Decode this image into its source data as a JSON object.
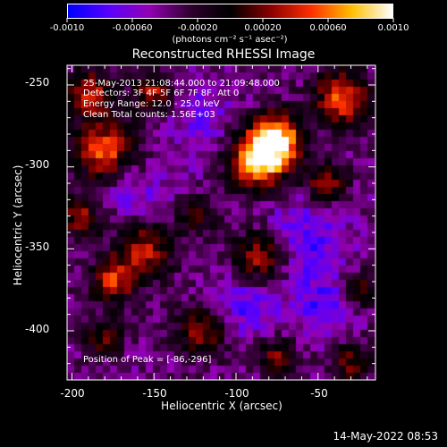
{
  "colorbar": {
    "ticks": [
      "-0.0010",
      "-0.00060",
      "-0.00020",
      "0.00020",
      "0.00060",
      "0.0010"
    ],
    "tick_values": [
      -0.001,
      -0.0006,
      -0.0002,
      0.0002,
      0.0006,
      0.001
    ],
    "range": [
      -0.001,
      0.001
    ],
    "unit": "(photons cm⁻² s⁻¹ asec⁻²)"
  },
  "chart_data": {
    "type": "heatmap",
    "title": "Reconstructed RHESSI Image",
    "xlabel": "Heliocentric X (arcsec)",
    "ylabel": "Heliocentric Y (arcsec)",
    "xlim": [
      -203,
      -15
    ],
    "ylim": [
      -430,
      -238
    ],
    "x_ticks": [
      -200,
      -150,
      -100,
      -50
    ],
    "y_ticks": [
      -250,
      -300,
      -350,
      -400
    ],
    "colormap_stops": [
      "#0000ff",
      "#5a00ff",
      "#9400b3",
      "#300030",
      "#000000",
      "#8a0000",
      "#ff3000",
      "#ffc000",
      "#ffffff"
    ],
    "hot_spots": [
      {
        "x": -86,
        "y": -296,
        "intensity": 1.0,
        "spread": 13
      },
      {
        "x": -75,
        "y": -282,
        "intensity": 0.85,
        "spread": 11
      },
      {
        "x": -180,
        "y": -290,
        "intensity": 0.75,
        "spread": 13
      },
      {
        "x": -190,
        "y": -255,
        "intensity": 0.65,
        "spread": 10
      },
      {
        "x": -150,
        "y": -255,
        "intensity": 0.55,
        "spread": 9
      },
      {
        "x": -35,
        "y": -258,
        "intensity": 0.75,
        "spread": 12
      },
      {
        "x": -155,
        "y": -350,
        "intensity": 0.6,
        "spread": 13
      },
      {
        "x": -125,
        "y": -330,
        "intensity": 0.6,
        "spread": 11
      },
      {
        "x": -85,
        "y": -355,
        "intensity": 0.65,
        "spread": 12
      },
      {
        "x": -45,
        "y": -310,
        "intensity": 0.55,
        "spread": 9
      },
      {
        "x": -195,
        "y": -330,
        "intensity": 0.55,
        "spread": 9
      },
      {
        "x": -175,
        "y": -370,
        "intensity": 0.6,
        "spread": 10
      },
      {
        "x": -120,
        "y": -400,
        "intensity": 0.55,
        "spread": 11
      },
      {
        "x": -180,
        "y": -405,
        "intensity": 0.5,
        "spread": 8
      },
      {
        "x": -75,
        "y": -415,
        "intensity": 0.5,
        "spread": 8
      },
      {
        "x": -30,
        "y": -420,
        "intensity": 0.45,
        "spread": 9
      },
      {
        "x": -25,
        "y": -375,
        "intensity": 0.45,
        "spread": 8
      }
    ],
    "cold_spots": [
      {
        "x": -130,
        "y": -330,
        "intensity": 0.8,
        "spread": 15
      },
      {
        "x": -60,
        "y": -345,
        "intensity": 0.9,
        "spread": 18
      },
      {
        "x": -45,
        "y": -385,
        "intensity": 0.9,
        "spread": 12
      },
      {
        "x": -95,
        "y": -385,
        "intensity": 0.85,
        "spread": 14
      },
      {
        "x": -165,
        "y": -315,
        "intensity": 0.6,
        "spread": 13
      },
      {
        "x": -120,
        "y": -270,
        "intensity": 0.6,
        "spread": 14
      }
    ]
  },
  "annotations": {
    "time_range": "25-May-2013 21:08:44.000 to 21:09:48.000",
    "detectors": "Detectors: 3F 4F 5F 6F 7F 8F, Att 0",
    "energy_range": "Energy Range: 12.0 - 25.0 keV",
    "method": "Clean     Total counts: 1.56E+03",
    "peak": "Position of Peak = [-86,-296]"
  },
  "timestamp": "14-May-2022 08:53"
}
